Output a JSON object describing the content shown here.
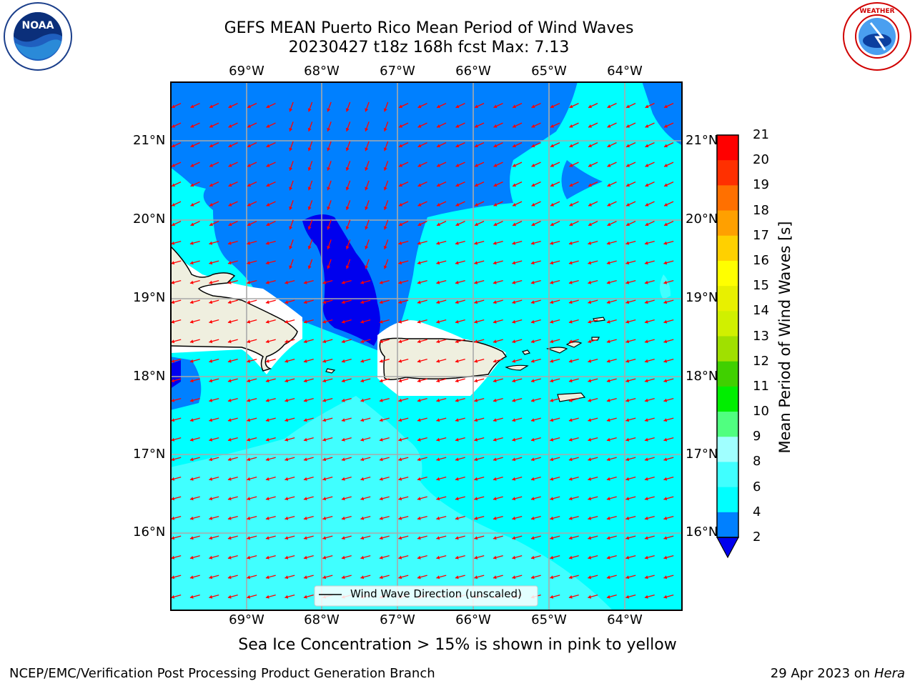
{
  "title": {
    "line1": "GEFS MEAN Puerto Rico Mean Period of Wind Waves",
    "line2": "20230427 t18z 168h fcst   Max: 7.13"
  },
  "logos": {
    "left": "NOAA",
    "right": "NATIONAL WEATHER SERVICE"
  },
  "map": {
    "lon_labels": [
      "69°W",
      "68°W",
      "67°W",
      "66°W",
      "65°W",
      "64°W"
    ],
    "lat_labels": [
      "21°N",
      "20°N",
      "19°N",
      "18°N",
      "17°N",
      "16°N"
    ],
    "legend_label": "Wind Wave Direction (unscaled)"
  },
  "colorbar": {
    "title": "Mean Period of Wind Waves [s]",
    "ticks": [
      "2",
      "4",
      "6",
      "8",
      "9",
      "10",
      "11",
      "12",
      "13",
      "14",
      "15",
      "16",
      "17",
      "18",
      "19",
      "20",
      "21"
    ],
    "colors": [
      "#0000ee",
      "#0080ff",
      "#00ffff",
      "#40ffff",
      "#a0ffff",
      "#50ff80",
      "#00ee00",
      "#40d000",
      "#a0e000",
      "#d0f000",
      "#e8f000",
      "#ffff00",
      "#ffd000",
      "#ffa000",
      "#ff7000",
      "#ff3000",
      "#ff0000"
    ]
  },
  "note": "Sea Ice Concentration > 15% is shown in pink to yellow",
  "footer": {
    "left": "NCEP/EMC/Verification Post Processing Product Generation Branch",
    "right_date": "29 Apr 2023 on ",
    "right_host": "Hera"
  }
}
